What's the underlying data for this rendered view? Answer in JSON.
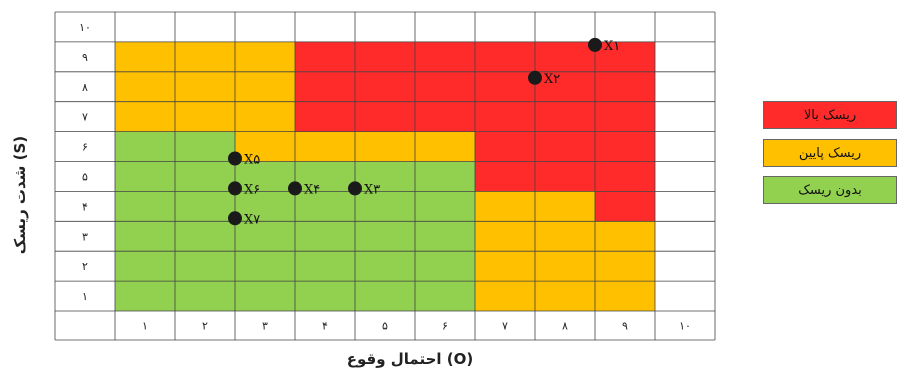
{
  "chart_data": {
    "type": "heatmap",
    "title": "",
    "xlabel": "احتمال وقوع (O)",
    "ylabel": "شدت ریسک (S)",
    "x_ticks": [
      "۱",
      "۲",
      "۳",
      "۴",
      "۵",
      "۶",
      "۷",
      "۸",
      "۹",
      "۱۰"
    ],
    "y_ticks": [
      "۱",
      "۲",
      "۳",
      "۴",
      "۵",
      "۶",
      "۷",
      "۸",
      "۹",
      "۱۰"
    ],
    "xlim": [
      0,
      10
    ],
    "ylim": [
      0,
      10
    ],
    "grid": true,
    "legend": [
      {
        "label": "ریسک بالا",
        "color": "#ff2a2a"
      },
      {
        "label": "ریسک پایین",
        "color": "#ffc000"
      },
      {
        "label": "بدون ریسک",
        "color": "#92d050"
      }
    ],
    "zones": [
      {
        "zone": "none",
        "color": "#92d050",
        "x": [
          0,
          2
        ],
        "y": [
          0,
          6
        ]
      },
      {
        "zone": "none",
        "color": "#92d050",
        "x": [
          2,
          6
        ],
        "y": [
          0,
          5
        ]
      },
      {
        "zone": "low",
        "color": "#ffc000",
        "x": [
          0,
          3
        ],
        "y": [
          6,
          9
        ]
      },
      {
        "zone": "low",
        "color": "#ffc000",
        "x": [
          2,
          3
        ],
        "y": [
          5,
          6
        ]
      },
      {
        "zone": "low",
        "color": "#ffc000",
        "x": [
          3,
          6
        ],
        "y": [
          5,
          6
        ]
      },
      {
        "zone": "low",
        "color": "#ffc000",
        "x": [
          6,
          9
        ],
        "y": [
          0,
          4
        ]
      },
      {
        "zone": "high",
        "color": "#ff2a2a",
        "x": [
          3,
          9
        ],
        "y": [
          6,
          9
        ]
      },
      {
        "zone": "high",
        "color": "#ff2a2a",
        "x": [
          6,
          9
        ],
        "y": [
          4,
          6
        ]
      },
      {
        "zone": "high",
        "color": "#ff2a2a",
        "x": [
          8,
          9
        ],
        "y": [
          3,
          4
        ]
      }
    ],
    "points": [
      {
        "label": "X۱",
        "x": 8.0,
        "y": 8.9
      },
      {
        "label": "X۲",
        "x": 7.0,
        "y": 7.8
      },
      {
        "label": "X۳",
        "x": 4.0,
        "y": 4.1
      },
      {
        "label": "X۴",
        "x": 3.0,
        "y": 4.1
      },
      {
        "label": "X۵",
        "x": 2.0,
        "y": 5.1
      },
      {
        "label": "X۶",
        "x": 2.0,
        "y": 4.1
      },
      {
        "label": "X۷",
        "x": 2.0,
        "y": 3.1
      }
    ]
  }
}
